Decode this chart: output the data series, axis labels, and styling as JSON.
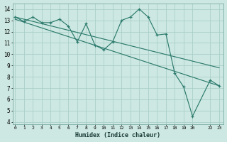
{
  "line1_x": [
    0,
    1,
    2,
    3,
    4,
    5,
    6,
    7,
    8,
    9,
    10,
    11,
    12,
    13,
    14,
    15,
    16,
    17,
    18,
    19,
    20,
    22,
    23
  ],
  "line1_y": [
    13.3,
    12.9,
    13.3,
    12.8,
    12.8,
    13.1,
    12.5,
    11.1,
    12.7,
    10.8,
    10.4,
    11.1,
    13.0,
    13.3,
    14.0,
    13.3,
    11.7,
    11.8,
    8.3,
    7.1,
    4.5,
    7.7,
    7.2
  ],
  "trend1_x": [
    0,
    23
  ],
  "trend1_y": [
    13.3,
    8.8
  ],
  "trend2_x": [
    0,
    23
  ],
  "trend2_y": [
    13.1,
    7.2
  ],
  "color": "#2d7b6e",
  "bg_color": "#cde8e2",
  "grid_color": "#aacfc8",
  "xlabel": "Humidex (Indice chaleur)",
  "ylim": [
    3.8,
    14.5
  ],
  "xlim": [
    -0.3,
    23.5
  ],
  "yticks": [
    4,
    5,
    6,
    7,
    8,
    9,
    10,
    11,
    12,
    13,
    14
  ],
  "xticks": [
    0,
    1,
    2,
    3,
    4,
    5,
    6,
    7,
    8,
    9,
    10,
    11,
    12,
    13,
    14,
    15,
    16,
    17,
    18,
    19,
    20,
    22,
    23
  ],
  "xtick_labels": [
    "0",
    "1",
    "2",
    "3",
    "4",
    "5",
    "6",
    "7",
    "8",
    "9",
    "10",
    "11",
    "12",
    "13",
    "14",
    "15",
    "16",
    "17",
    "18",
    "19",
    "20",
    "22",
    "23"
  ]
}
